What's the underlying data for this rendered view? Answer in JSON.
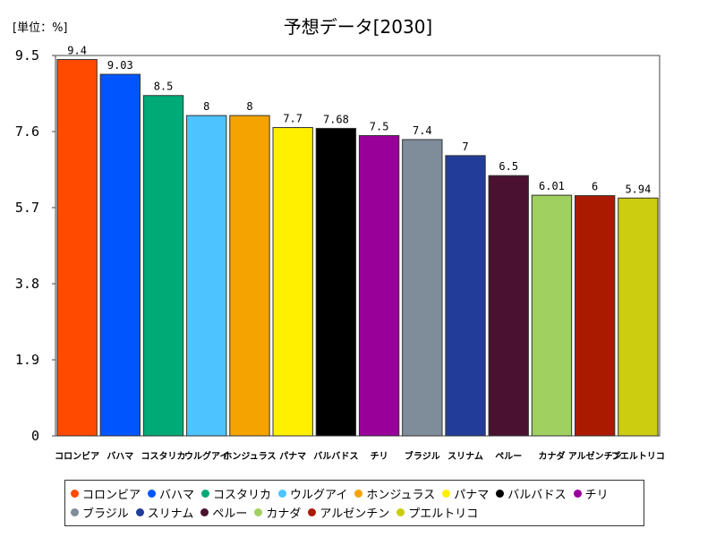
{
  "chart_data": {
    "type": "bar",
    "title": "予想データ[2030]",
    "unit_label": "[単位：%]",
    "ylim": [
      0,
      9.5
    ],
    "yticks": [
      "0",
      "1.9",
      "3.8",
      "5.7",
      "7.6",
      "9.5"
    ],
    "categories": [
      "コロンビア",
      "バハマ",
      "コスタリカ",
      "ウルグアイ",
      "ホンジュラス",
      "パナマ",
      "バルバドス",
      "チリ",
      "ブラジル",
      "スリナム",
      "ペルー",
      "カナダ",
      "アルゼンチン",
      "プエルトリコ"
    ],
    "values": [
      9.4,
      9.03,
      8.5,
      8,
      8,
      7.7,
      7.68,
      7.5,
      7.4,
      7,
      6.5,
      6.01,
      6,
      5.94
    ],
    "value_labels": [
      "9.4",
      "9.03",
      "8.5",
      "8",
      "8",
      "7.7",
      "7.68",
      "7.5",
      "7.4",
      "7",
      "6.5",
      "6.01",
      "6",
      "5.94"
    ],
    "colors": [
      "#ff4a00",
      "#0055ff",
      "#00aa77",
      "#4dc3ff",
      "#f5a300",
      "#fff000",
      "#000000",
      "#990099",
      "#7f8c99",
      "#223d99",
      "#4a1230",
      "#a0d060",
      "#aa1a00",
      "#cccc11"
    ],
    "grid": false,
    "legend_position": "bottom"
  }
}
